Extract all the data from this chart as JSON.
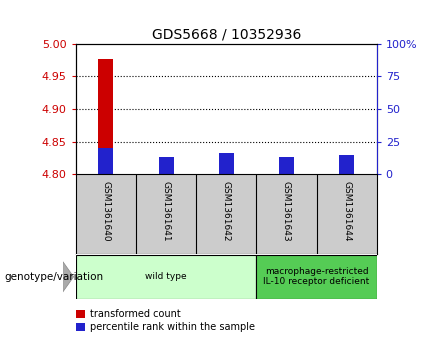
{
  "title": "GDS5668 / 10352936",
  "samples": [
    "GSM1361640",
    "GSM1361641",
    "GSM1361642",
    "GSM1361643",
    "GSM1361644"
  ],
  "red_values": [
    4.977,
    4.826,
    4.831,
    4.824,
    4.822
  ],
  "blue_values": [
    4.84,
    4.826,
    4.833,
    4.826,
    4.829
  ],
  "ylim": [
    4.8,
    5.0
  ],
  "yticks": [
    4.8,
    4.85,
    4.9,
    4.95,
    5.0
  ],
  "right_yticks": [
    0,
    25,
    50,
    75,
    100
  ],
  "right_ytick_pos": [
    4.8,
    4.85,
    4.9,
    4.95,
    5.0
  ],
  "bar_width": 0.25,
  "red_color": "#cc0000",
  "blue_color": "#2222cc",
  "bg_color": "#ffffff",
  "sample_box_color": "#cccccc",
  "genotype_groups": [
    {
      "label": "wild type",
      "samples": [
        0,
        1,
        2
      ],
      "color": "#ccffcc"
    },
    {
      "label": "macrophage-restricted\nIL-10 receptor deficient",
      "samples": [
        3,
        4
      ],
      "color": "#55cc55"
    }
  ],
  "genotype_label": "genotype/variation",
  "legend_items": [
    {
      "color": "#cc0000",
      "label": "transformed count"
    },
    {
      "color": "#2222cc",
      "label": "percentile rank within the sample"
    }
  ]
}
